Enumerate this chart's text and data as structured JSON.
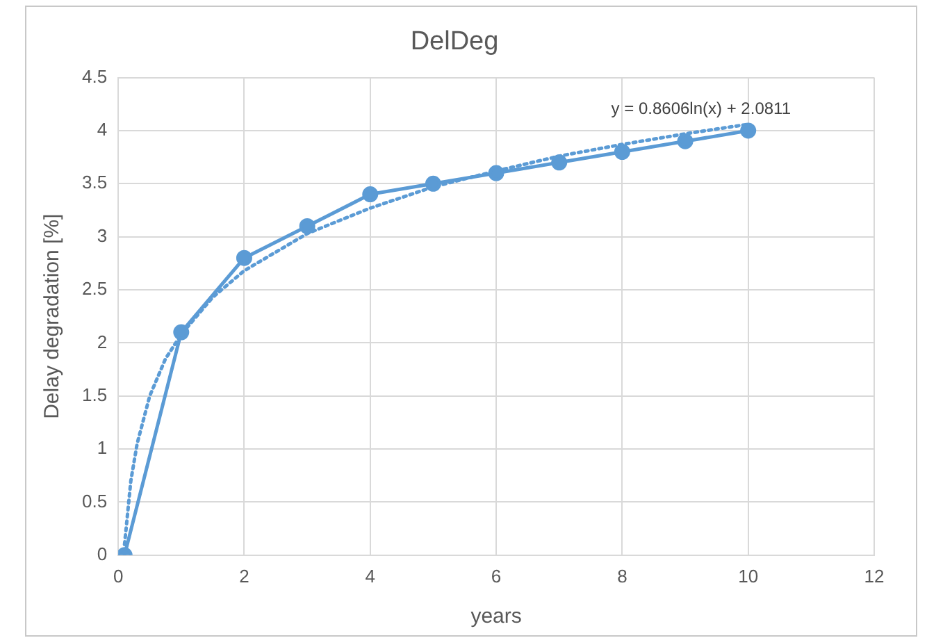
{
  "chart_data": {
    "type": "line",
    "title": "DelDeg",
    "xlabel": "years",
    "ylabel": "Delay degradation [%]",
    "xlim": [
      0,
      12
    ],
    "xticks": [
      0,
      2,
      4,
      6,
      8,
      10,
      12
    ],
    "ylim": [
      0,
      4.5
    ],
    "yticks": [
      0,
      0.5,
      1,
      1.5,
      2,
      2.5,
      3,
      3.5,
      4,
      4.5
    ],
    "grid": true,
    "series": [
      {
        "color": "#5b9bd5",
        "marker": "circle",
        "line_style": "solid",
        "x": [
          0.1,
          1,
          2,
          3,
          4,
          5,
          6,
          7,
          8,
          9,
          10
        ],
        "values": [
          0,
          2.1,
          2.8,
          3.1,
          3.4,
          3.5,
          3.6,
          3.7,
          3.8,
          3.9,
          4.0
        ]
      },
      {
        "color": "#5b9bd5",
        "marker": "none",
        "line_style": "dotted",
        "x": [
          0.1,
          0.2,
          0.3,
          0.5,
          0.75,
          1,
          1.5,
          2,
          3,
          4,
          5,
          6,
          7,
          8,
          9,
          10
        ],
        "values": [
          0.1,
          0.7,
          1.05,
          1.5,
          1.85,
          2.08,
          2.43,
          2.68,
          3.03,
          3.27,
          3.47,
          3.62,
          3.76,
          3.87,
          3.97,
          4.06
        ]
      }
    ],
    "annotations": [
      "y = 0.8606ln(x) + 2.0811"
    ]
  }
}
